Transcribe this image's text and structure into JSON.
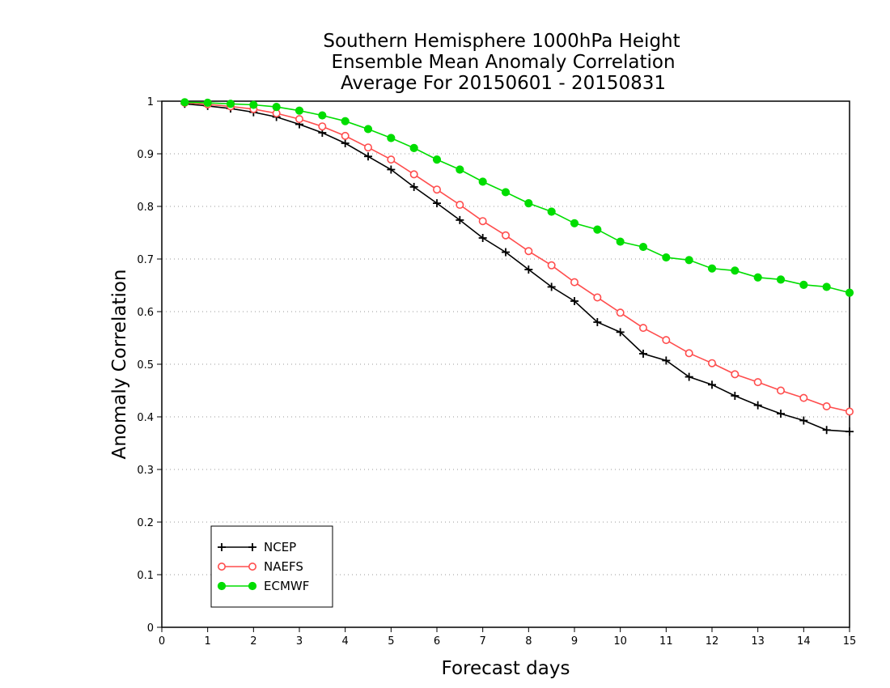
{
  "chart_data": {
    "type": "line",
    "title_lines": [
      "Southern Hemisphere 1000hPa Height",
      "Ensemble Mean Anomaly Correlation",
      "Average For 20150601 - 20150831"
    ],
    "xlabel": "Forecast days",
    "ylabel": "Anomaly Correlation",
    "xlim": [
      0,
      15
    ],
    "ylim": [
      0,
      1
    ],
    "x_ticks": [
      "0",
      "1",
      "2",
      "3",
      "4",
      "5",
      "6",
      "7",
      "8",
      "9",
      "10",
      "11",
      "12",
      "13",
      "14",
      "15"
    ],
    "y_ticks": [
      "0",
      "0.1",
      "0.2",
      "0.3",
      "0.4",
      "0.5",
      "0.6",
      "0.7",
      "0.8",
      "0.9",
      "1"
    ],
    "grid": true,
    "legend_position": "bottom-left",
    "x": [
      0.5,
      1,
      1.5,
      2,
      2.5,
      3,
      3.5,
      4,
      4.5,
      5,
      5.5,
      6,
      6.5,
      7,
      7.5,
      8,
      8.5,
      9,
      9.5,
      10,
      10.5,
      11,
      11.5,
      12,
      12.5,
      13,
      13.5,
      14,
      14.5,
      15
    ],
    "series": [
      {
        "name": "NCEP",
        "color": "#000000",
        "marker": "plus",
        "values": [
          0.995,
          0.991,
          0.986,
          0.979,
          0.97,
          0.956,
          0.94,
          0.92,
          0.895,
          0.87,
          0.837,
          0.806,
          0.774,
          0.74,
          0.713,
          0.68,
          0.647,
          0.62,
          0.58,
          0.561,
          0.52,
          0.507,
          0.476,
          0.461,
          0.44,
          0.422,
          0.406,
          0.393,
          0.375,
          0.372
        ]
      },
      {
        "name": "NAEFS",
        "color": "#ff4d4d",
        "marker": "open-circle",
        "values": [
          0.997,
          0.994,
          0.99,
          0.985,
          0.977,
          0.966,
          0.952,
          0.934,
          0.912,
          0.889,
          0.861,
          0.832,
          0.803,
          0.772,
          0.745,
          0.715,
          0.688,
          0.656,
          0.627,
          0.598,
          0.569,
          0.546,
          0.521,
          0.502,
          0.481,
          0.466,
          0.45,
          0.436,
          0.42,
          0.41
        ]
      },
      {
        "name": "ECMWF",
        "color": "#00dd00",
        "marker": "filled-circle",
        "values": [
          0.998,
          0.997,
          0.995,
          0.993,
          0.989,
          0.982,
          0.973,
          0.962,
          0.947,
          0.93,
          0.911,
          0.889,
          0.87,
          0.847,
          0.827,
          0.806,
          0.79,
          0.768,
          0.756,
          0.733,
          0.723,
          0.703,
          0.698,
          0.682,
          0.678,
          0.665,
          0.661,
          0.651,
          0.647,
          0.636
        ]
      }
    ]
  }
}
